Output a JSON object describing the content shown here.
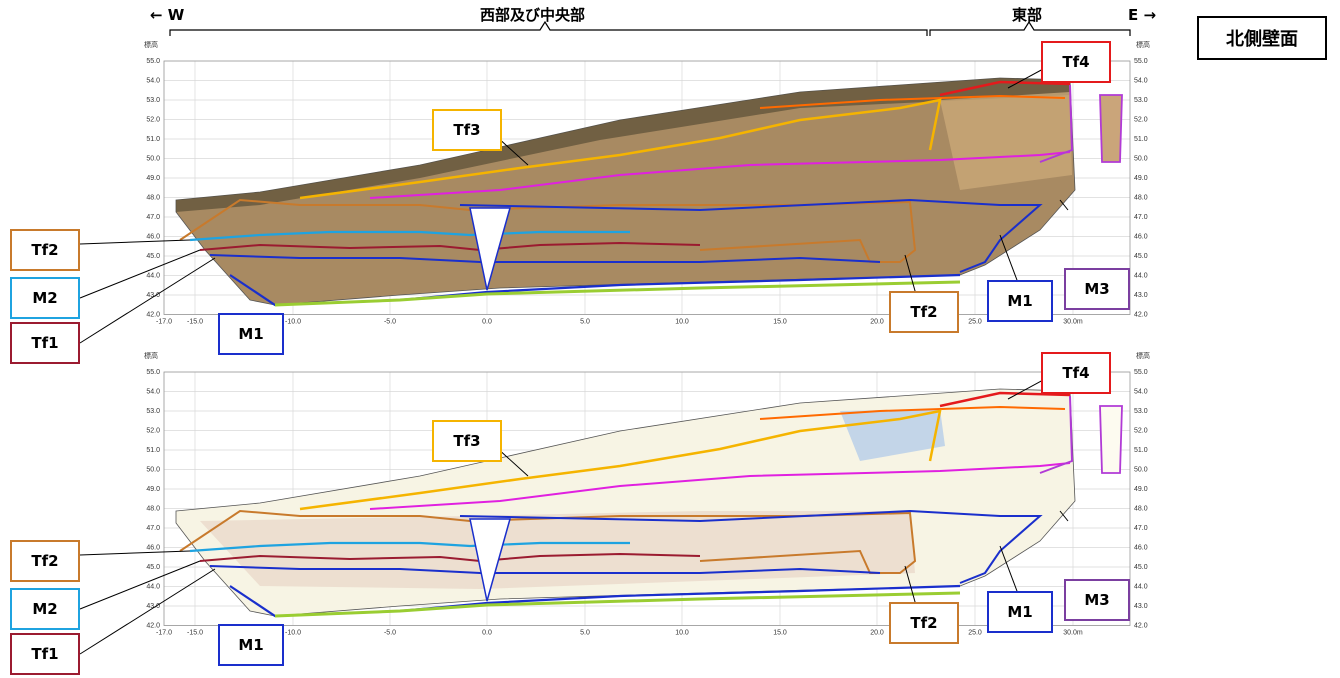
{
  "title": "北側壁面",
  "header": {
    "west_arrow": "← W",
    "east_arrow": "E →",
    "west_central": "西部及び中央部",
    "east": "東部"
  },
  "axis": {
    "y_unit": "標高\n(m)",
    "y_ticks": [
      "55.0",
      "54.0",
      "53.0",
      "52.0",
      "51.0",
      "50.0",
      "49.0",
      "48.0",
      "47.0",
      "46.0",
      "45.0",
      "44.0",
      "43.0",
      "42.0"
    ],
    "x_ticks": [
      "-17.0",
      "-15.0",
      "-10.0",
      "-5.0",
      "0.0",
      "5.0",
      "10.0",
      "15.0",
      "20.0",
      "25.0",
      "30.0m"
    ]
  },
  "panels": [
    {
      "kind": "photo",
      "labels": [
        {
          "id": "Tf4",
          "text": "Tf4",
          "color": "#e41a1c"
        },
        {
          "id": "Tf3",
          "text": "Tf3",
          "color": "#f5b400"
        },
        {
          "id": "Tf2-left",
          "text": "Tf2",
          "color": "#c87a2c"
        },
        {
          "id": "M2",
          "text": "M2",
          "color": "#1fa3e0"
        },
        {
          "id": "Tf1",
          "text": "Tf1",
          "color": "#9b1b30"
        },
        {
          "id": "M1-left",
          "text": "M1",
          "color": "#1a2fcc"
        },
        {
          "id": "Tf2-right",
          "text": "Tf2",
          "color": "#c87a2c"
        },
        {
          "id": "M1-right",
          "text": "M1",
          "color": "#1a2fcc"
        },
        {
          "id": "M3",
          "text": "M3",
          "color": "#7b3fa0"
        }
      ]
    },
    {
      "kind": "drawing",
      "labels": [
        {
          "id": "Tf4",
          "text": "Tf4",
          "color": "#e41a1c"
        },
        {
          "id": "Tf3",
          "text": "Tf3",
          "color": "#f5b400"
        },
        {
          "id": "Tf2-left",
          "text": "Tf2",
          "color": "#c87a2c"
        },
        {
          "id": "M2",
          "text": "M2",
          "color": "#1fa3e0"
        },
        {
          "id": "Tf1",
          "text": "Tf1",
          "color": "#9b1b30"
        },
        {
          "id": "M1-left",
          "text": "M1",
          "color": "#1a2fcc"
        },
        {
          "id": "Tf2-right",
          "text": "Tf2",
          "color": "#c87a2c"
        },
        {
          "id": "M1-right",
          "text": "M1",
          "color": "#1a2fcc"
        },
        {
          "id": "M3",
          "text": "M3",
          "color": "#7b3fa0"
        }
      ]
    }
  ]
}
